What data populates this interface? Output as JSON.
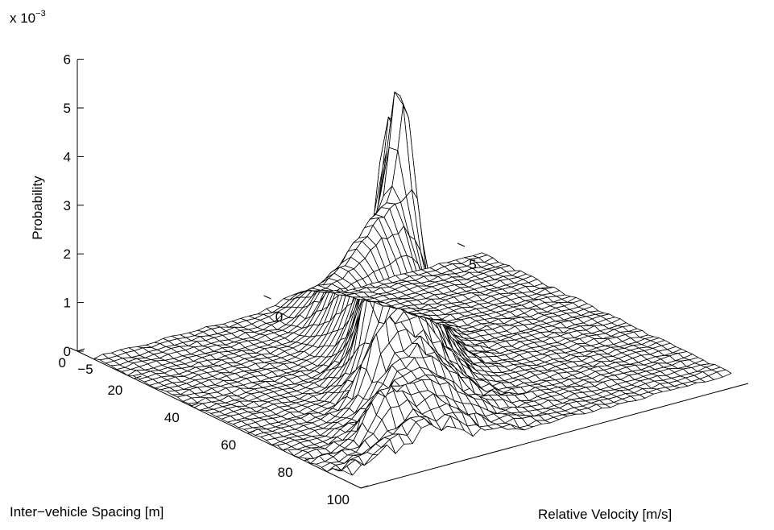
{
  "chart_data": {
    "type": "surface",
    "render": "mesh",
    "zlabel": "Probability",
    "xlabel": "Relative Velocity [m/s]",
    "ylabel": "Inter−vehicle Spacing [m]",
    "z_scale_text": "x 10",
    "z_scale_exponent": "−3",
    "z_ticks": [
      0,
      1,
      2,
      3,
      4,
      5,
      6
    ],
    "z_tick_labels": [
      "0",
      "1",
      "2",
      "3",
      "4",
      "5",
      "6"
    ],
    "x_ticks": [
      -5,
      0,
      5
    ],
    "x_tick_labels": [
      "−5",
      "0",
      "5"
    ],
    "y_ticks": [
      0,
      20,
      40,
      60,
      80,
      100
    ],
    "y_tick_labels": [
      "0",
      "20",
      "40",
      "60",
      "80",
      "100"
    ],
    "xlim": [
      -5,
      5
    ],
    "ylim": [
      0,
      100
    ],
    "zlim": [
      0,
      0.006
    ],
    "grid": false,
    "peaks": [
      {
        "x": 0.0,
        "y": 46,
        "z": 0.0048
      },
      {
        "x": -0.6,
        "y": 50,
        "z": 0.0043
      },
      {
        "x": -1.3,
        "y": 56,
        "z": 0.004
      },
      {
        "x": -2.2,
        "y": 67,
        "z": 0.0025
      },
      {
        "x": -3.2,
        "y": 82,
        "z": 0.0017
      }
    ],
    "ridge": {
      "description": "probability concentrated near zero relative velocity, spreading to negative velocities at larger spacings",
      "x_center_at_spacing": [
        [
          20,
          0.3
        ],
        [
          40,
          0.1
        ],
        [
          60,
          -0.9
        ],
        [
          80,
          -2.0
        ],
        [
          95,
          -3.0
        ]
      ]
    }
  }
}
